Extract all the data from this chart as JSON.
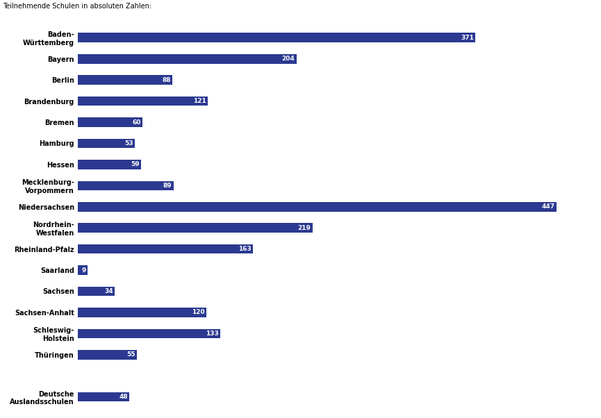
{
  "title": "Teilnehmende Schulen in absoluten Zahlen:",
  "categories": [
    "Baden-\nWürttemberg",
    "Bayern",
    "Berlin",
    "Brandenburg",
    "Bremen",
    "Hamburg",
    "Hessen",
    "Mecklenburg-\nVorpommern",
    "Niedersachsen",
    "Nordrhein-\nWestfalen",
    "Rheinland-Pfalz",
    "Saarland",
    "Sachsen",
    "Sachsen-Anhalt",
    "Schleswig-\nHolstein",
    "Thüringen",
    "",
    "Deutsche\nAuslandsschulen"
  ],
  "values": [
    371,
    204,
    88,
    121,
    60,
    53,
    59,
    89,
    447,
    219,
    163,
    9,
    34,
    120,
    133,
    55,
    0,
    48
  ],
  "bar_color": "#2b3990",
  "label_color": "#ffffff",
  "title_color": "#000000",
  "title_fontsize": 7,
  "label_fontsize": 6.5,
  "category_fontsize": 7,
  "background_color": "#ffffff",
  "xlim": [
    0,
    480
  ],
  "bar_height": 0.45
}
